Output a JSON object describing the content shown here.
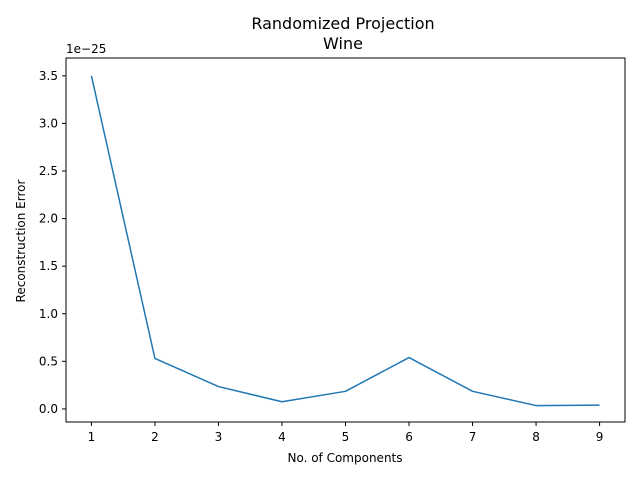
{
  "chart_data": {
    "type": "line",
    "title": "Randomized Projection",
    "subtitle": "Wine",
    "xlabel": "No. of Components",
    "ylabel": "Reconstruction Error",
    "y_offset_label": "1e−25",
    "x": [
      1,
      2,
      3,
      4,
      5,
      6,
      7,
      8,
      9
    ],
    "series": [
      {
        "values": [
          3.5,
          0.53,
          0.235,
          0.075,
          0.185,
          0.54,
          0.185,
          0.035,
          0.04
        ]
      }
    ],
    "xticks": [
      1,
      2,
      3,
      4,
      5,
      6,
      7,
      8,
      9
    ],
    "yticks": [
      0.0,
      0.5,
      1.0,
      1.5,
      2.0,
      2.5,
      3.0,
      3.5
    ],
    "ytick_labels": [
      "0.0",
      "0.5",
      "1.0",
      "1.5",
      "2.0",
      "2.5",
      "3.0",
      "3.5"
    ],
    "xlim": [
      0.6,
      9.4
    ],
    "ylim": [
      -0.1375,
      3.6875
    ],
    "grid": false,
    "legend": "none",
    "colors": {
      "line": "#1f77b4",
      "axes": "#000000"
    }
  }
}
